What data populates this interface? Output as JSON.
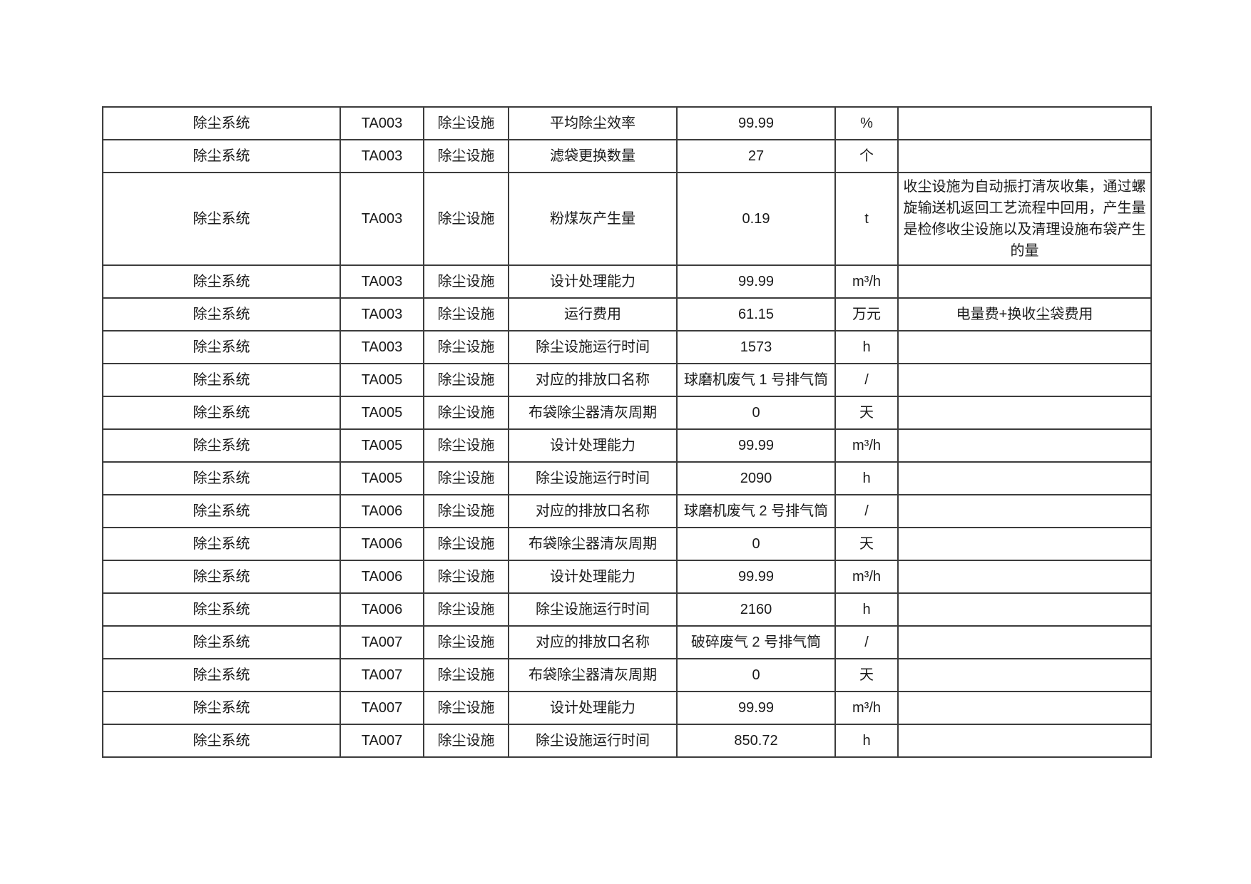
{
  "page": {
    "background_color": "#ffffff",
    "text_color": "#1a1a1a",
    "table_border_color": "#3c3c3c"
  },
  "table": {
    "columns": [
      "system",
      "code",
      "facility",
      "parameter",
      "value",
      "unit",
      "remark"
    ],
    "rows": [
      {
        "system": "除尘系统",
        "code": "TA003",
        "facility": "除尘设施",
        "parameter": "平均除尘效率",
        "value": "99.99",
        "unit": "%",
        "remark": ""
      },
      {
        "system": "除尘系统",
        "code": "TA003",
        "facility": "除尘设施",
        "parameter": "滤袋更换数量",
        "value": "27",
        "unit": "个",
        "remark": ""
      },
      {
        "system": "除尘系统",
        "code": "TA003",
        "facility": "除尘设施",
        "parameter": "粉煤灰产生量",
        "value": "0.19",
        "unit": "t",
        "remark": "收尘设施为自动振打清灰收集，通过螺旋输送机返回工艺流程中回用，产生量是检修收尘设施以及清理设施布袋产生的量"
      },
      {
        "system": "除尘系统",
        "code": "TA003",
        "facility": "除尘设施",
        "parameter": "设计处理能力",
        "value": "99.99",
        "unit": "m³/h",
        "remark": ""
      },
      {
        "system": "除尘系统",
        "code": "TA003",
        "facility": "除尘设施",
        "parameter": "运行费用",
        "value": "61.15",
        "unit": "万元",
        "remark": "电量费+换收尘袋费用"
      },
      {
        "system": "除尘系统",
        "code": "TA003",
        "facility": "除尘设施",
        "parameter": "除尘设施运行时间",
        "value": "1573",
        "unit": "h",
        "remark": ""
      },
      {
        "system": "除尘系统",
        "code": "TA005",
        "facility": "除尘设施",
        "parameter": "对应的排放口名称",
        "value": "球磨机废气 1 号排气筒",
        "unit": "/",
        "remark": ""
      },
      {
        "system": "除尘系统",
        "code": "TA005",
        "facility": "除尘设施",
        "parameter": "布袋除尘器清灰周期",
        "value": "0",
        "unit": "天",
        "remark": ""
      },
      {
        "system": "除尘系统",
        "code": "TA005",
        "facility": "除尘设施",
        "parameter": "设计处理能力",
        "value": "99.99",
        "unit": "m³/h",
        "remark": ""
      },
      {
        "system": "除尘系统",
        "code": "TA005",
        "facility": "除尘设施",
        "parameter": "除尘设施运行时间",
        "value": "2090",
        "unit": "h",
        "remark": ""
      },
      {
        "system": "除尘系统",
        "code": "TA006",
        "facility": "除尘设施",
        "parameter": "对应的排放口名称",
        "value": "球磨机废气 2 号排气筒",
        "unit": "/",
        "remark": ""
      },
      {
        "system": "除尘系统",
        "code": "TA006",
        "facility": "除尘设施",
        "parameter": "布袋除尘器清灰周期",
        "value": "0",
        "unit": "天",
        "remark": ""
      },
      {
        "system": "除尘系统",
        "code": "TA006",
        "facility": "除尘设施",
        "parameter": "设计处理能力",
        "value": "99.99",
        "unit": "m³/h",
        "remark": ""
      },
      {
        "system": "除尘系统",
        "code": "TA006",
        "facility": "除尘设施",
        "parameter": "除尘设施运行时间",
        "value": "2160",
        "unit": "h",
        "remark": ""
      },
      {
        "system": "除尘系统",
        "code": "TA007",
        "facility": "除尘设施",
        "parameter": "对应的排放口名称",
        "value": "破碎废气 2 号排气筒",
        "unit": "/",
        "remark": ""
      },
      {
        "system": "除尘系统",
        "code": "TA007",
        "facility": "除尘设施",
        "parameter": "布袋除尘器清灰周期",
        "value": "0",
        "unit": "天",
        "remark": ""
      },
      {
        "system": "除尘系统",
        "code": "TA007",
        "facility": "除尘设施",
        "parameter": "设计处理能力",
        "value": "99.99",
        "unit": "m³/h",
        "remark": ""
      },
      {
        "system": "除尘系统",
        "code": "TA007",
        "facility": "除尘设施",
        "parameter": "除尘设施运行时间",
        "value": "850.72",
        "unit": "h",
        "remark": ""
      }
    ]
  }
}
